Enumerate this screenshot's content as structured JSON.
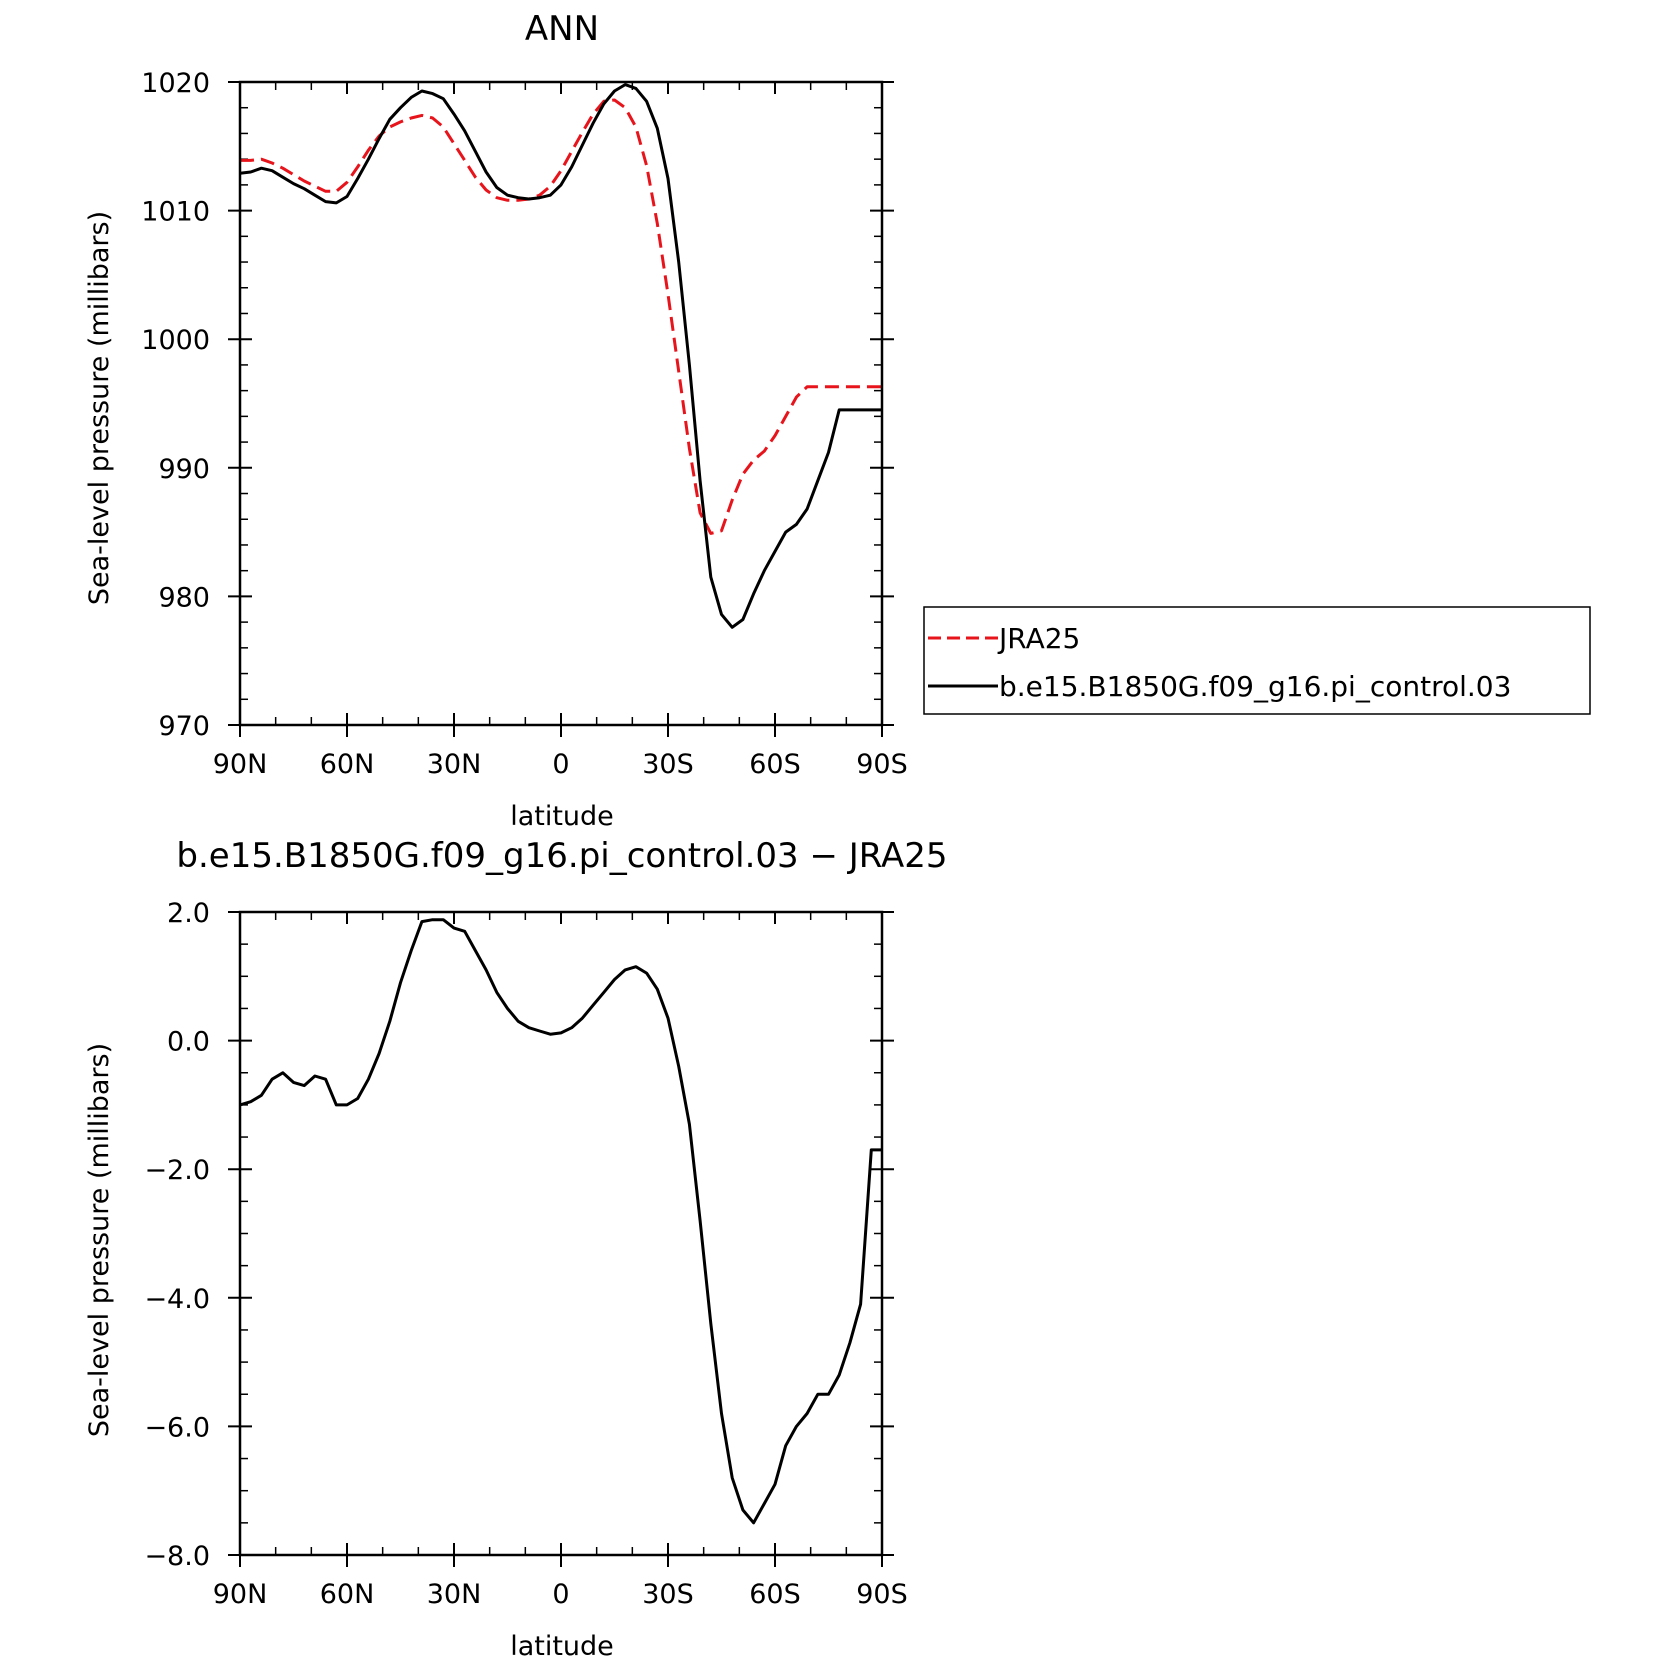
{
  "chart_data": [
    {
      "type": "line",
      "title": "ANN",
      "xlabel": "latitude",
      "ylabel": "Sea-level pressure (millibars)",
      "xlim": [
        90,
        -90
      ],
      "ylim": [
        970,
        1020
      ],
      "xticks": [
        {
          "v": 90,
          "label": "90N"
        },
        {
          "v": 60,
          "label": "60N"
        },
        {
          "v": 30,
          "label": "30N"
        },
        {
          "v": 0,
          "label": "0"
        },
        {
          "v": -30,
          "label": "30S"
        },
        {
          "v": -60,
          "label": "60S"
        },
        {
          "v": -90,
          "label": "90S"
        }
      ],
      "yticks": [
        {
          "v": 1020,
          "label": "1020"
        },
        {
          "v": 1010,
          "label": "1010"
        },
        {
          "v": 1000,
          "label": "1000"
        },
        {
          "v": 990,
          "label": "990"
        },
        {
          "v": 980,
          "label": "980"
        },
        {
          "v": 970,
          "label": "970"
        }
      ],
      "legend_position": "right",
      "series": [
        {
          "name": "JRA25",
          "color": "#e8141c",
          "dash": true,
          "x": [
            90,
            87,
            84,
            81,
            78,
            75,
            72,
            69,
            66,
            63,
            60,
            57,
            54,
            51,
            48,
            45,
            42,
            39,
            36,
            33,
            30,
            27,
            24,
            21,
            18,
            15,
            12,
            9,
            6,
            3,
            0,
            -3,
            -6,
            -9,
            -12,
            -15,
            -18,
            -21,
            -24,
            -27,
            -30,
            -33,
            -36,
            -39,
            -42,
            -45,
            -48,
            -51,
            -54,
            -57,
            -60,
            -63,
            -66,
            -69,
            -72,
            -75,
            -78,
            -81,
            -84,
            -87,
            -90
          ],
          "y": [
            1013.9,
            1013.9,
            1014.0,
            1013.7,
            1013.3,
            1012.8,
            1012.3,
            1011.9,
            1011.5,
            1011.5,
            1012.2,
            1013.4,
            1014.7,
            1015.8,
            1016.5,
            1016.9,
            1017.2,
            1017.4,
            1017.2,
            1016.5,
            1015.2,
            1013.9,
            1012.6,
            1011.6,
            1011.0,
            1010.8,
            1010.8,
            1010.9,
            1011.2,
            1011.9,
            1013.1,
            1014.6,
            1016.1,
            1017.5,
            1018.5,
            1018.6,
            1018.0,
            1016.5,
            1013.5,
            1009.0,
            1003.5,
            997.5,
            991.5,
            986.5,
            984.9,
            985.1,
            987.5,
            989.5,
            990.6,
            991.3,
            992.5,
            994.0,
            995.5,
            996.3,
            996.3,
            996.3,
            996.3,
            996.3,
            996.3,
            996.3,
            996.3
          ]
        },
        {
          "name": "b.e15.B1850G.f09_g16.pi_control.03",
          "color": "#000000",
          "dash": false,
          "x": [
            90,
            87,
            84,
            81,
            78,
            75,
            72,
            69,
            66,
            63,
            60,
            57,
            54,
            51,
            48,
            45,
            42,
            39,
            36,
            33,
            30,
            27,
            24,
            21,
            18,
            15,
            12,
            9,
            6,
            3,
            0,
            -3,
            -6,
            -9,
            -12,
            -15,
            -18,
            -21,
            -24,
            -27,
            -30,
            -33,
            -36,
            -39,
            -42,
            -45,
            -48,
            -51,
            -54,
            -57,
            -60,
            -63,
            -66,
            -69,
            -72,
            -75,
            -78,
            -81,
            -84,
            -87,
            -90
          ],
          "y": [
            1012.9,
            1013.0,
            1013.3,
            1013.1,
            1012.6,
            1012.1,
            1011.7,
            1011.2,
            1010.7,
            1010.6,
            1011.1,
            1012.5,
            1014.0,
            1015.6,
            1017.1,
            1018.0,
            1018.8,
            1019.3,
            1019.1,
            1018.7,
            1017.5,
            1016.2,
            1014.6,
            1013.0,
            1011.8,
            1011.2,
            1011.0,
            1010.9,
            1011.0,
            1011.2,
            1012.0,
            1013.4,
            1015.1,
            1016.8,
            1018.3,
            1019.3,
            1019.8,
            1019.5,
            1018.5,
            1016.4,
            1012.5,
            1006.0,
            998.0,
            989.0,
            981.5,
            978.6,
            977.6,
            978.2,
            980.2,
            982.0,
            983.5,
            985.0,
            985.6,
            986.8,
            989.0,
            991.2,
            994.5,
            994.5,
            994.5,
            994.5,
            994.5
          ]
        }
      ]
    },
    {
      "type": "line",
      "title": "b.e15.B1850G.f09_g16.pi_control.03 − JRA25",
      "xlabel": "latitude",
      "ylabel": "Sea-level pressure (millibars)",
      "xlim": [
        90,
        -90
      ],
      "ylim": [
        -8,
        2
      ],
      "xticks": [
        {
          "v": 90,
          "label": "90N"
        },
        {
          "v": 60,
          "label": "60N"
        },
        {
          "v": 30,
          "label": "30N"
        },
        {
          "v": 0,
          "label": "0"
        },
        {
          "v": -30,
          "label": "30S"
        },
        {
          "v": -60,
          "label": "60S"
        },
        {
          "v": -90,
          "label": "90S"
        }
      ],
      "yticks": [
        {
          "v": 2,
          "label": "2.0"
        },
        {
          "v": 0,
          "label": "0.0"
        },
        {
          "v": -2,
          "label": "−2.0"
        },
        {
          "v": -4,
          "label": "−4.0"
        },
        {
          "v": -6,
          "label": "−6.0"
        },
        {
          "v": -8,
          "label": "−8.0"
        }
      ],
      "series": [
        {
          "color": "#000000",
          "dash": false,
          "x": [
            90,
            87,
            84,
            81,
            78,
            75,
            72,
            69,
            66,
            63,
            60,
            57,
            54,
            51,
            48,
            45,
            42,
            39,
            36,
            33,
            30,
            27,
            24,
            21,
            18,
            15,
            12,
            9,
            6,
            3,
            0,
            -3,
            -6,
            -9,
            -12,
            -15,
            -18,
            -21,
            -24,
            -27,
            -30,
            -33,
            -36,
            -39,
            -42,
            -45,
            -48,
            -51,
            -54,
            -57,
            -60,
            -63,
            -66,
            -69,
            -72,
            -75,
            -78,
            -81,
            -84,
            -87,
            -90
          ],
          "y": [
            -1.0,
            -0.95,
            -0.85,
            -0.6,
            -0.5,
            -0.65,
            -0.7,
            -0.55,
            -0.6,
            -1.0,
            -1.0,
            -0.9,
            -0.6,
            -0.2,
            0.3,
            0.9,
            1.4,
            1.85,
            1.88,
            1.88,
            1.75,
            1.7,
            1.4,
            1.1,
            0.75,
            0.5,
            0.3,
            0.2,
            0.15,
            0.1,
            0.12,
            0.2,
            0.35,
            0.55,
            0.75,
            0.95,
            1.1,
            1.15,
            1.05,
            0.8,
            0.35,
            -0.4,
            -1.3,
            -2.8,
            -4.4,
            -5.8,
            -6.8,
            -7.3,
            -7.5,
            -7.2,
            -6.9,
            -6.3,
            -6.0,
            -5.8,
            -5.5,
            -5.5,
            -5.2,
            -4.7,
            -4.1,
            -1.7,
            -1.7
          ]
        }
      ]
    }
  ]
}
